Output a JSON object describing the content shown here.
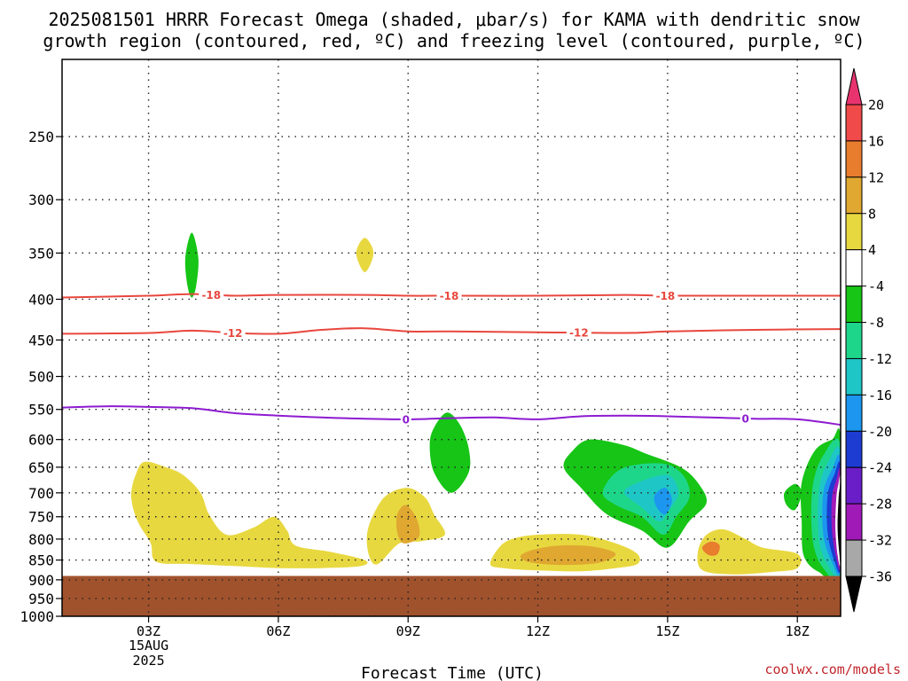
{
  "title": {
    "line1": "2025081501 HRRR Forecast Omega (shaded, μbar/s) for KAMA with dendritic snow",
    "line2": "growth region (contoured, red, ºC) and freezing level (contoured, purple, ºC)"
  },
  "credit": "coolwx.com/models",
  "chart_data": {
    "type": "contour",
    "x_axis": {
      "label": "Forecast Time (UTC)",
      "range": [
        1,
        19
      ],
      "ticks": [
        {
          "value": 3,
          "label": "03Z",
          "sub1": "15AUG",
          "sub2": "2025"
        },
        {
          "value": 6,
          "label": "06Z"
        },
        {
          "value": 9,
          "label": "09Z"
        },
        {
          "value": 12,
          "label": "12Z"
        },
        {
          "value": 15,
          "label": "15Z"
        },
        {
          "value": 18,
          "label": "18Z"
        }
      ]
    },
    "y_axis": {
      "label": "",
      "scale": "log",
      "range": [
        1000,
        200
      ],
      "inverted": true,
      "ticks": [
        250,
        300,
        350,
        400,
        450,
        500,
        550,
        600,
        650,
        700,
        750,
        800,
        850,
        900,
        950,
        1000
      ]
    },
    "grid": true,
    "terrain": {
      "color": "#a0522d",
      "surface_pressure": 890
    },
    "colorbar": {
      "levels": [
        20,
        16,
        12,
        8,
        4,
        -4,
        -8,
        -12,
        -16,
        -20,
        -24,
        -28,
        -32,
        -36
      ],
      "colors": [
        "#e8336f",
        "#f04a4a",
        "#e87d2e",
        "#e0a830",
        "#e8d840",
        "#ffffff",
        "#16c516",
        "#1ed68a",
        "#1ec6c6",
        "#1c96ee",
        "#1c3cd2",
        "#6a1ec8",
        "#a01ab8",
        "#a8a8a8",
        "#000000"
      ],
      "extend": "both"
    },
    "omega_regions": [
      {
        "color": "#16c516",
        "points": [
          [
            4.0,
            330
          ],
          [
            4.15,
            355
          ],
          [
            4.1,
            385
          ],
          [
            4.0,
            398
          ],
          [
            3.9,
            385
          ],
          [
            3.85,
            355
          ]
        ]
      },
      {
        "color": "#e8d840",
        "points": [
          [
            8.0,
            335
          ],
          [
            8.2,
            350
          ],
          [
            8.0,
            370
          ],
          [
            7.8,
            350
          ]
        ]
      },
      {
        "color": "#e8d840",
        "points": [
          [
            2.6,
            700
          ],
          [
            2.7,
            665
          ],
          [
            2.9,
            640
          ],
          [
            3.4,
            650
          ],
          [
            3.8,
            665
          ],
          [
            4.2,
            700
          ],
          [
            4.4,
            745
          ],
          [
            4.8,
            790
          ],
          [
            5.4,
            775
          ],
          [
            5.9,
            750
          ],
          [
            6.2,
            780
          ],
          [
            6.4,
            815
          ],
          [
            7.2,
            830
          ],
          [
            8.0,
            850
          ],
          [
            7.9,
            865
          ],
          [
            7.0,
            870
          ],
          [
            6.0,
            870
          ],
          [
            5.0,
            865
          ],
          [
            4.0,
            860
          ],
          [
            3.3,
            858
          ],
          [
            3.1,
            845
          ],
          [
            3.05,
            810
          ],
          [
            2.8,
            770
          ],
          [
            2.65,
            735
          ]
        ]
      },
      {
        "color": "#e8d840",
        "points": [
          [
            8.2,
            745
          ],
          [
            8.5,
            705
          ],
          [
            9.0,
            690
          ],
          [
            9.4,
            710
          ],
          [
            9.6,
            745
          ],
          [
            9.85,
            790
          ],
          [
            9.3,
            805
          ],
          [
            8.8,
            810
          ],
          [
            8.3,
            860
          ],
          [
            8.1,
            840
          ],
          [
            8.05,
            790
          ]
        ]
      },
      {
        "color": "#e0a830",
        "points": [
          [
            8.75,
            745
          ],
          [
            8.95,
            725
          ],
          [
            9.2,
            755
          ],
          [
            9.25,
            795
          ],
          [
            8.9,
            810
          ],
          [
            8.75,
            785
          ]
        ]
      },
      {
        "color": "#16c516",
        "points": [
          [
            9.5,
            610
          ],
          [
            9.6,
            580
          ],
          [
            9.9,
            555
          ],
          [
            10.2,
            575
          ],
          [
            10.4,
            615
          ],
          [
            10.4,
            660
          ],
          [
            10.0,
            700
          ],
          [
            9.6,
            660
          ]
        ]
      },
      {
        "color": "#e8d840",
        "points": [
          [
            10.9,
            860
          ],
          [
            11.1,
            820
          ],
          [
            11.4,
            800
          ],
          [
            12.0,
            790
          ],
          [
            13.0,
            790
          ],
          [
            13.8,
            810
          ],
          [
            14.3,
            835
          ],
          [
            14.3,
            860
          ],
          [
            13.8,
            870
          ],
          [
            13.0,
            878
          ],
          [
            12.0,
            876
          ],
          [
            11.2,
            870
          ]
        ]
      },
      {
        "color": "#e0a830",
        "points": [
          [
            11.6,
            840
          ],
          [
            11.9,
            825
          ],
          [
            12.5,
            815
          ],
          [
            13.3,
            818
          ],
          [
            13.8,
            835
          ],
          [
            13.4,
            857
          ],
          [
            12.5,
            862
          ],
          [
            11.8,
            855
          ]
        ]
      },
      {
        "color": "#16c516",
        "points": [
          [
            12.6,
            650
          ],
          [
            12.8,
            620
          ],
          [
            13.2,
            600
          ],
          [
            14.0,
            610
          ],
          [
            14.5,
            625
          ],
          [
            15.3,
            650
          ],
          [
            15.7,
            680
          ],
          [
            15.9,
            720
          ],
          [
            15.5,
            760
          ],
          [
            15.0,
            820
          ],
          [
            14.4,
            780
          ],
          [
            13.6,
            745
          ],
          [
            13.0,
            690
          ]
        ]
      },
      {
        "color": "#1ed68a",
        "points": [
          [
            13.5,
            700
          ],
          [
            13.8,
            660
          ],
          [
            14.3,
            645
          ],
          [
            15.0,
            645
          ],
          [
            15.4,
            670
          ],
          [
            15.5,
            710
          ],
          [
            15.2,
            750
          ],
          [
            14.9,
            790
          ],
          [
            14.4,
            750
          ],
          [
            13.8,
            725
          ]
        ]
      },
      {
        "color": "#1ec6c6",
        "points": [
          [
            14.0,
            700
          ],
          [
            14.3,
            680
          ],
          [
            15.0,
            665
          ],
          [
            15.25,
            700
          ],
          [
            15.0,
            740
          ],
          [
            14.8,
            760
          ],
          [
            14.4,
            730
          ]
        ]
      },
      {
        "color": "#1c96ee",
        "points": [
          [
            14.7,
            705
          ],
          [
            14.95,
            690
          ],
          [
            15.1,
            715
          ],
          [
            14.95,
            745
          ],
          [
            14.75,
            730
          ]
        ]
      },
      {
        "color": "#e8d840",
        "points": [
          [
            15.7,
            830
          ],
          [
            15.9,
            790
          ],
          [
            16.3,
            778
          ],
          [
            16.8,
            800
          ],
          [
            17.2,
            820
          ],
          [
            18.0,
            835
          ],
          [
            18.0,
            870
          ],
          [
            17.4,
            880
          ],
          [
            16.5,
            886
          ],
          [
            15.8,
            875
          ]
        ]
      },
      {
        "color": "#e87d2e",
        "points": [
          [
            15.8,
            820
          ],
          [
            16.0,
            806
          ],
          [
            16.2,
            814
          ],
          [
            16.15,
            836
          ],
          [
            15.95,
            838
          ]
        ]
      },
      {
        "color": "#16c516",
        "points": [
          [
            17.7,
            700
          ],
          [
            17.95,
            682
          ],
          [
            18.1,
            700
          ],
          [
            17.95,
            735
          ],
          [
            17.75,
            725
          ]
        ]
      },
      {
        "color": "#16c516",
        "points": [
          [
            18.1,
            680
          ],
          [
            18.4,
            620
          ],
          [
            18.8,
            600
          ],
          [
            19.0,
            598
          ],
          [
            19.0,
            885
          ],
          [
            18.5,
            880
          ],
          [
            18.15,
            840
          ],
          [
            18.1,
            760
          ]
        ]
      },
      {
        "color": "#1ed68a",
        "points": [
          [
            18.35,
            690
          ],
          [
            18.6,
            628
          ],
          [
            19.0,
            612
          ],
          [
            19.0,
            880
          ],
          [
            18.6,
            870
          ],
          [
            18.35,
            800
          ]
        ]
      },
      {
        "color": "#1ec6c6",
        "points": [
          [
            18.5,
            695
          ],
          [
            18.7,
            642
          ],
          [
            19.0,
            625
          ],
          [
            19.0,
            875
          ],
          [
            18.7,
            862
          ],
          [
            18.5,
            800
          ]
        ]
      },
      {
        "color": "#1c96ee",
        "points": [
          [
            18.6,
            700
          ],
          [
            18.8,
            655
          ],
          [
            19.0,
            638
          ],
          [
            19.0,
            870
          ],
          [
            18.8,
            855
          ],
          [
            18.6,
            790
          ]
        ]
      },
      {
        "color": "#1c3cd2",
        "points": [
          [
            18.7,
            705
          ],
          [
            18.85,
            665
          ],
          [
            19.0,
            650
          ],
          [
            19.0,
            865
          ],
          [
            18.85,
            850
          ],
          [
            18.7,
            785
          ]
        ]
      },
      {
        "color": "#a01ab8",
        "points": [
          [
            18.8,
            710
          ],
          [
            18.9,
            675
          ],
          [
            19.0,
            662
          ],
          [
            19.0,
            860
          ],
          [
            18.9,
            845
          ],
          [
            18.8,
            780
          ]
        ]
      },
      {
        "color": "#ffffff",
        "points": [
          [
            18.9,
            712
          ],
          [
            18.95,
            682
          ],
          [
            19.0,
            676
          ],
          [
            19.0,
            852
          ],
          [
            18.93,
            838
          ],
          [
            18.88,
            775
          ]
        ]
      },
      {
        "color": "#000000",
        "points": [
          [
            18.95,
            715
          ],
          [
            18.98,
            690
          ],
          [
            19.0,
            685
          ],
          [
            19.0,
            848
          ],
          [
            18.97,
            832
          ],
          [
            18.93,
            775
          ]
        ]
      }
    ],
    "contours": [
      {
        "name": "-18",
        "color": "#e8473e",
        "points": [
          [
            1,
            398
          ],
          [
            3,
            396
          ],
          [
            4,
            394
          ],
          [
            5,
            396
          ],
          [
            6,
            395
          ],
          [
            8,
            395
          ],
          [
            9,
            396
          ],
          [
            10,
            396
          ],
          [
            12,
            396
          ],
          [
            14,
            395
          ],
          [
            15,
            396
          ],
          [
            17,
            396
          ],
          [
            19,
            396
          ]
        ],
        "labels": [
          {
            "x": 4.45,
            "text": "-18"
          },
          {
            "x": 9.95,
            "text": "-18"
          },
          {
            "x": 14.95,
            "text": "-18"
          }
        ]
      },
      {
        "name": "-12",
        "color": "#e8473e",
        "points": [
          [
            1,
            442
          ],
          [
            3,
            441
          ],
          [
            4,
            438
          ],
          [
            5,
            441
          ],
          [
            6,
            442
          ],
          [
            7,
            437
          ],
          [
            8,
            435
          ],
          [
            9,
            439
          ],
          [
            10,
            439
          ],
          [
            12,
            440
          ],
          [
            14,
            441
          ],
          [
            15,
            439
          ],
          [
            17,
            437
          ],
          [
            19,
            436
          ]
        ],
        "labels": [
          {
            "x": 4.95,
            "text": "-12"
          },
          {
            "x": 12.95,
            "text": "-12"
          }
        ]
      },
      {
        "name": "0",
        "color": "#8d1bd0",
        "points": [
          [
            1,
            547
          ],
          [
            2,
            545
          ],
          [
            3,
            546
          ],
          [
            4,
            548
          ],
          [
            5,
            556
          ],
          [
            6,
            560
          ],
          [
            7,
            563
          ],
          [
            8,
            565
          ],
          [
            9,
            566
          ],
          [
            10,
            564
          ],
          [
            11,
            563
          ],
          [
            12,
            566
          ],
          [
            13,
            561
          ],
          [
            14,
            560
          ],
          [
            15,
            561
          ],
          [
            16,
            563
          ],
          [
            17,
            565
          ],
          [
            18,
            566
          ],
          [
            19,
            575
          ]
        ],
        "labels": [
          {
            "x": 8.95,
            "text": "0"
          },
          {
            "x": 16.8,
            "text": "0"
          }
        ]
      }
    ]
  }
}
